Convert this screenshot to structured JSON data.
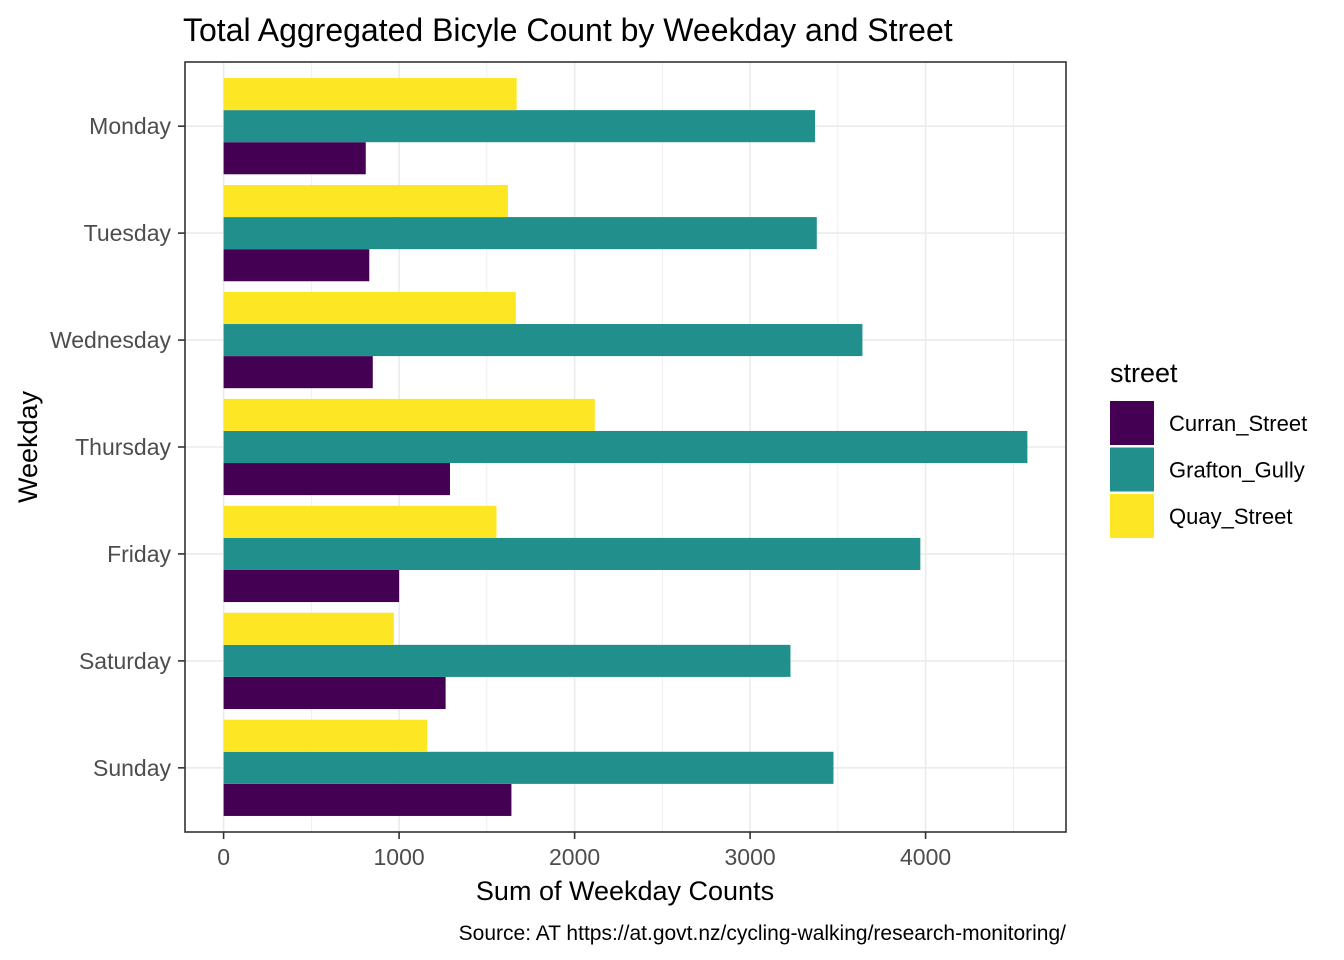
{
  "chart_data": {
    "type": "bar",
    "orientation": "horizontal",
    "title": "Total Aggregated Bicyle Count by Weekday and Street",
    "xlabel": "Sum of Weekday Counts",
    "ylabel": "Weekday",
    "caption": "Source: AT https://at.govt.nz/cycling-walking/research-monitoring/",
    "categories": [
      "Monday",
      "Tuesday",
      "Wednesday",
      "Thursday",
      "Friday",
      "Saturday",
      "Sunday"
    ],
    "x_ticks": [
      "0",
      "1000",
      "2000",
      "3000",
      "4000"
    ],
    "xlim": [
      -220,
      4800
    ],
    "grid": true,
    "legend": {
      "title": "street",
      "position": "right"
    },
    "series": [
      {
        "name": "Curran_Street",
        "color": "#440154",
        "values": [
          810,
          830,
          850,
          1290,
          1000,
          1265,
          1640
        ]
      },
      {
        "name": "Grafton_Gully",
        "color": "#21908C",
        "values": [
          3370,
          3380,
          3640,
          4580,
          3970,
          3230,
          3475
        ]
      },
      {
        "name": "Quay_Street",
        "color": "#FDE725",
        "values": [
          1670,
          1620,
          1665,
          2115,
          1555,
          970,
          1160
        ]
      }
    ]
  }
}
